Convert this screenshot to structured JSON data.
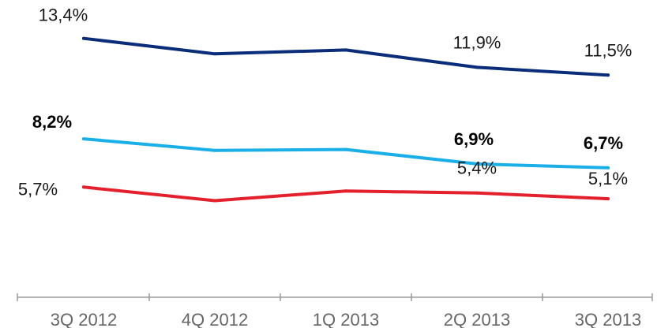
{
  "chart_data": {
    "type": "line",
    "categories": [
      "3Q 2012",
      "4Q 2012",
      "1Q 2013",
      "2Q 2013",
      "3Q 2013"
    ],
    "series": [
      {
        "color": "#0a2d7a",
        "values": [
          13.4,
          12.6,
          12.8,
          11.9,
          11.5
        ],
        "data_labels": [
          "13,4%",
          "",
          "",
          "11,9%",
          "11,5%"
        ],
        "label_bold": false
      },
      {
        "color": "#1aafe6",
        "values": [
          8.2,
          7.6,
          7.65,
          6.9,
          6.7
        ],
        "data_labels": [
          "8,2%",
          "",
          "",
          "6,9%",
          "6,7%"
        ],
        "label_bold": true
      },
      {
        "color": "#e3202c",
        "values": [
          5.7,
          5.0,
          5.5,
          5.4,
          5.1
        ],
        "data_labels": [
          "5,7%",
          "",
          "",
          "5,4%",
          "5,1%"
        ],
        "label_bold": false
      }
    ],
    "ylim": [
      0,
      15
    ],
    "grid": false,
    "legend": false,
    "xlabel": "",
    "ylabel": "",
    "title": ""
  }
}
